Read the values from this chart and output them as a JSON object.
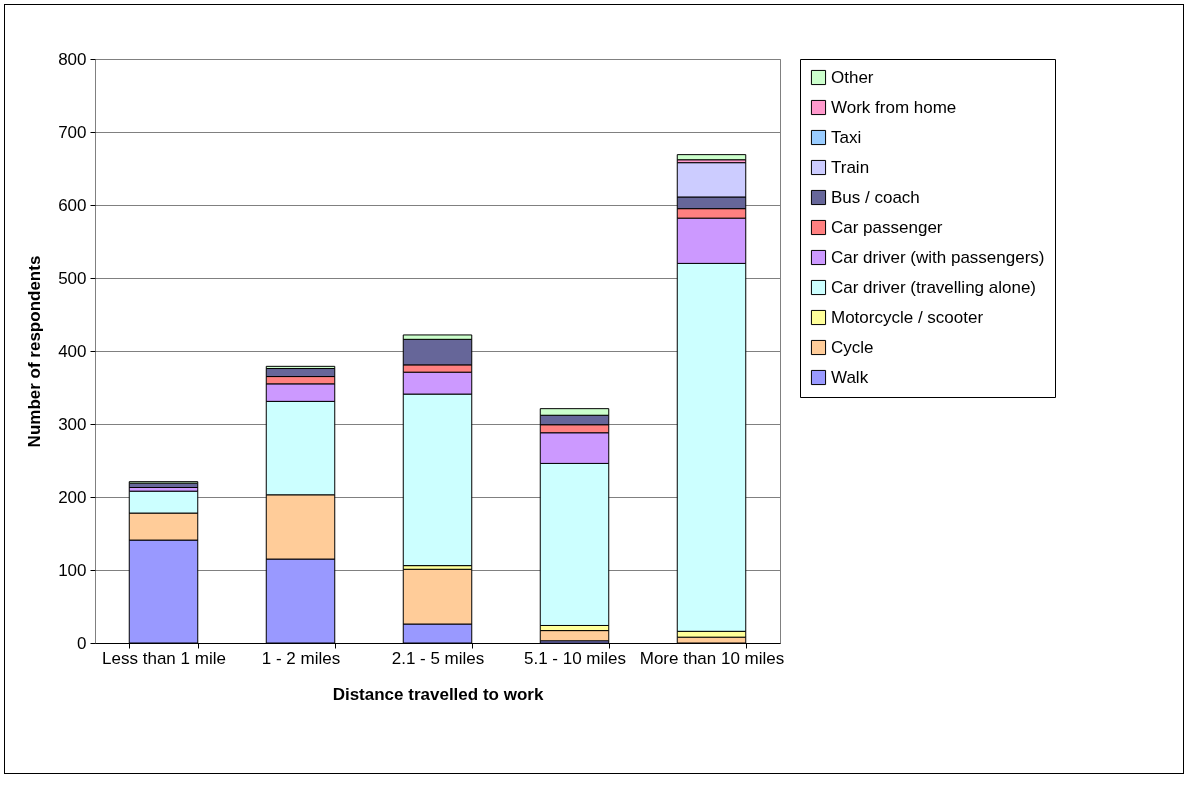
{
  "chart_data": {
    "type": "bar",
    "stacked": true,
    "xlabel": "Distance travelled to work",
    "ylabel": "Number of respondents",
    "categories": [
      "Less than 1 mile",
      "1 - 2 miles",
      "2.1 - 5 miles",
      "5.1 - 10 miles",
      "More than 10 miles"
    ],
    "ylim": [
      0,
      800
    ],
    "yticks": [
      0,
      100,
      200,
      300,
      400,
      500,
      600,
      700,
      800
    ],
    "grid": "y",
    "legend": "right",
    "series": [
      {
        "name": "Walk",
        "color": "#9999ff",
        "values": [
          141,
          115,
          26,
          3,
          0
        ]
      },
      {
        "name": "Cycle",
        "color": "#ffcc99",
        "values": [
          37,
          88,
          75,
          14,
          8
        ]
      },
      {
        "name": "Motorcycle / scooter",
        "color": "#ffff99",
        "values": [
          0,
          0,
          5,
          7,
          8
        ]
      },
      {
        "name": "Car driver (travelling alone)",
        "color": "#ccffff",
        "values": [
          30,
          128,
          235,
          222,
          504
        ]
      },
      {
        "name": "Car driver (with passengers)",
        "color": "#cc99ff",
        "values": [
          5,
          24,
          30,
          42,
          62
        ]
      },
      {
        "name": "Car passenger",
        "color": "#ff8080",
        "values": [
          null,
          10,
          10,
          11,
          13
        ]
      },
      {
        "name": "Bus / coach",
        "color": "#666699",
        "values": [
          6,
          11,
          35,
          13,
          16
        ]
      },
      {
        "name": "Train",
        "color": "#ccccff",
        "values": [
          0,
          0,
          0,
          0,
          47
        ]
      },
      {
        "name": "Taxi",
        "color": "#99ccff",
        "values": [
          0,
          0,
          0,
          0,
          0
        ]
      },
      {
        "name": "Work from home",
        "color": "#ff99cc",
        "values": [
          0,
          0,
          0,
          0,
          4
        ]
      },
      {
        "name": "Other",
        "color": "#ccffcc",
        "values": [
          2,
          3,
          6,
          9,
          7
        ]
      }
    ]
  }
}
